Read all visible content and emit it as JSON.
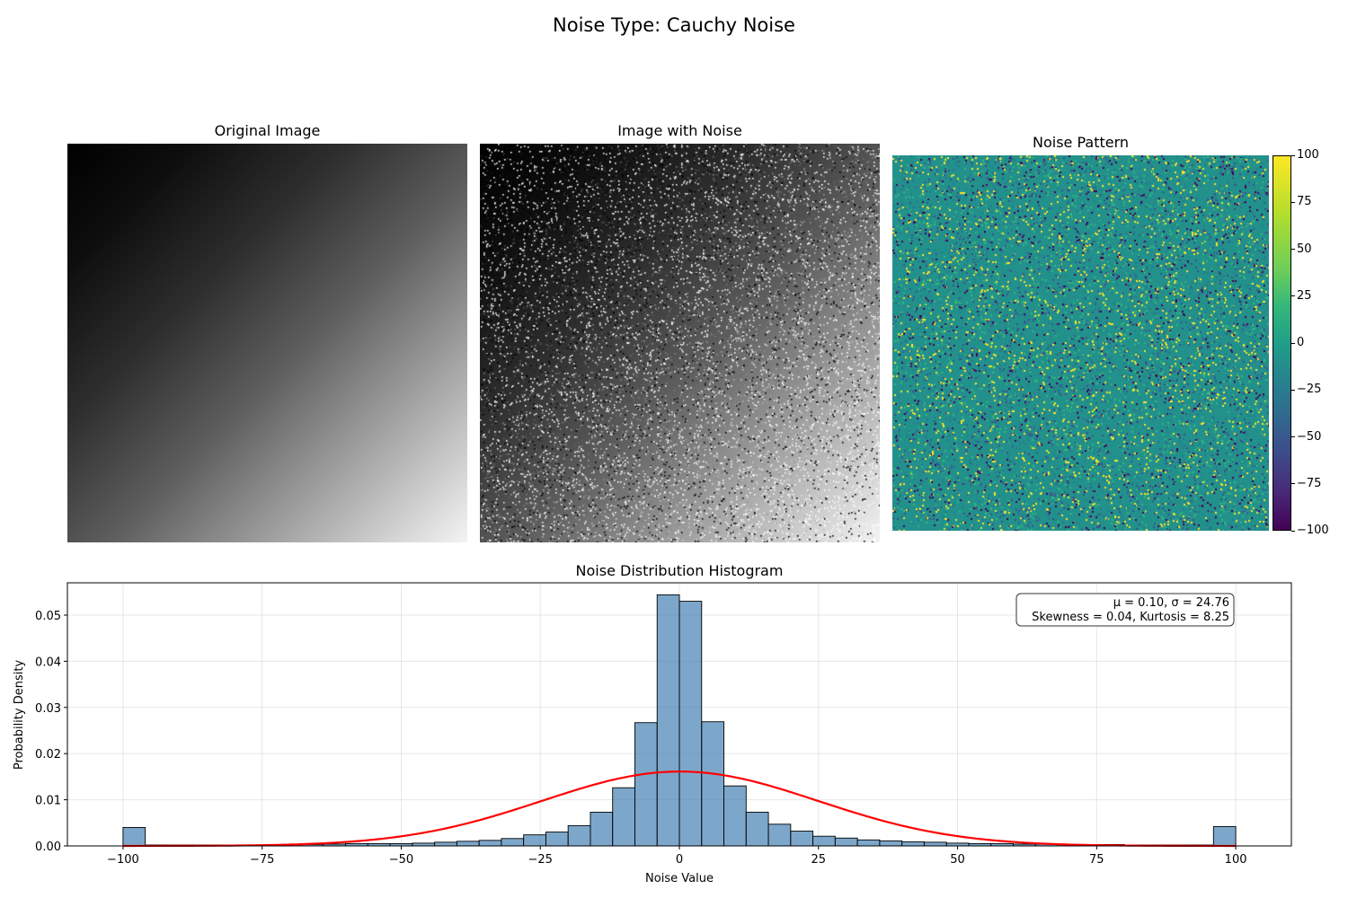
{
  "suptitle": "Noise Type: Cauchy Noise",
  "panels": {
    "original_title": "Original Image",
    "noisy_title": "Image with Noise",
    "noise_title": "Noise Pattern",
    "colorbar": {
      "cmap": "viridis",
      "range": [
        -100,
        100
      ],
      "ticks": [
        {
          "value": 100,
          "label": "100"
        },
        {
          "value": 75,
          "label": "75"
        },
        {
          "value": 50,
          "label": "50"
        },
        {
          "value": 25,
          "label": "25"
        },
        {
          "value": 0,
          "label": "0"
        },
        {
          "value": -25,
          "label": "−25"
        },
        {
          "value": -50,
          "label": "−50"
        },
        {
          "value": -75,
          "label": "−75"
        },
        {
          "value": -100,
          "label": "−100"
        }
      ]
    }
  },
  "chart_data": {
    "type": "bar",
    "title": "Noise Distribution Histogram",
    "xlabel": "Noise Value",
    "ylabel": "Probability Density",
    "xlim": [
      -110,
      110
    ],
    "ylim": [
      0,
      0.057
    ],
    "grid": true,
    "bar_color": "#4682b4",
    "fit_color": "#ff0000",
    "xticks": [
      {
        "value": -100,
        "label": "−100"
      },
      {
        "value": -75,
        "label": "−75"
      },
      {
        "value": -50,
        "label": "−50"
      },
      {
        "value": -25,
        "label": "−25"
      },
      {
        "value": 0,
        "label": "0"
      },
      {
        "value": 25,
        "label": "25"
      },
      {
        "value": 50,
        "label": "50"
      },
      {
        "value": 75,
        "label": "75"
      },
      {
        "value": 100,
        "label": "100"
      }
    ],
    "yticks": [
      {
        "value": 0,
        "label": "0.00"
      },
      {
        "value": 0.01,
        "label": "0.01"
      },
      {
        "value": 0.02,
        "label": "0.02"
      },
      {
        "value": 0.03,
        "label": "0.03"
      },
      {
        "value": 0.04,
        "label": "0.04"
      },
      {
        "value": 0.05,
        "label": "0.05"
      }
    ],
    "bin_edges": [
      -100,
      -96,
      -92,
      -88,
      -84,
      -80,
      -76,
      -72,
      -68,
      -64,
      -60,
      -56,
      -52,
      -48,
      -44,
      -40,
      -36,
      -32,
      -28,
      -24,
      -20,
      -16,
      -12,
      -8,
      -4,
      0,
      4,
      8,
      12,
      16,
      20,
      24,
      28,
      32,
      36,
      40,
      44,
      48,
      52,
      56,
      60,
      64,
      68,
      72,
      76,
      80,
      84,
      88,
      92,
      96,
      100
    ],
    "densities": [
      0.004,
      0.0002,
      0.0002,
      0.0002,
      0.0002,
      0.0002,
      0.0002,
      0.0003,
      0.0003,
      0.0004,
      0.0005,
      0.0005,
      0.0005,
      0.0006,
      0.0008,
      0.001,
      0.0012,
      0.0016,
      0.0024,
      0.003,
      0.0044,
      0.0073,
      0.0126,
      0.0267,
      0.0544,
      0.053,
      0.0269,
      0.013,
      0.0073,
      0.0047,
      0.0032,
      0.0021,
      0.0017,
      0.0013,
      0.0011,
      0.0009,
      0.0008,
      0.0006,
      0.0005,
      0.0005,
      0.0004,
      0.0004,
      0.0003,
      0.0003,
      0.0003,
      0.0002,
      0.0002,
      0.0002,
      0.0002,
      0.0042
    ],
    "fit": {
      "type": "normal",
      "mu": 0.1,
      "sigma": 24.76
    },
    "stats_text": [
      "μ = 0.10, σ = 24.76",
      "Skewness = 0.04, Kurtosis = 8.25"
    ]
  }
}
